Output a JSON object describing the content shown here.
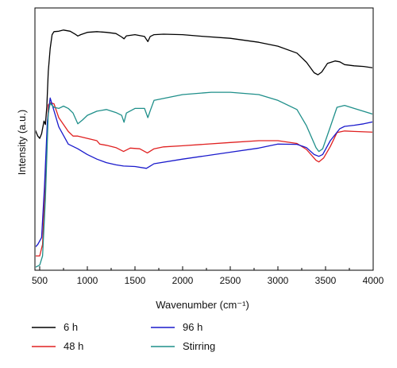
{
  "chart_data": {
    "type": "line",
    "xlabel": "Wavenumber (cm⁻¹)",
    "ylabel": "Intensity (a.u.)",
    "xlim": [
      450,
      4000
    ],
    "ylim": [
      0,
      100
    ],
    "x_ticks": [
      500,
      1000,
      1500,
      2000,
      2500,
      3000,
      3500,
      4000
    ],
    "x_tick_labels": [
      "500",
      "1000",
      "1500",
      "2000",
      "2500",
      "3000",
      "3500",
      "4000"
    ],
    "y_ticks": "none",
    "grid": false,
    "legend_position": "below",
    "series": [
      {
        "name": "6 h",
        "color": "#000000",
        "x": [
          450,
          480,
          500,
          520,
          545,
          560,
          575,
          590,
          610,
          630,
          650,
          700,
          750,
          820,
          880,
          900,
          930,
          1000,
          1100,
          1200,
          1300,
          1360,
          1385,
          1410,
          1500,
          1600,
          1635,
          1660,
          1700,
          1800,
          2000,
          2200,
          2500,
          2800,
          3000,
          3200,
          3300,
          3380,
          3420,
          3460,
          3520,
          3600,
          3650,
          3700,
          3800,
          3900,
          4000
        ],
        "y": [
          55.0,
          52.0,
          51.0,
          53.0,
          58.5,
          57.0,
          65.0,
          80.0,
          90.0,
          96.0,
          97.3,
          97.5,
          98.0,
          97.5,
          96.0,
          95.4,
          96.0,
          97.0,
          97.3,
          97.0,
          96.5,
          95.0,
          94.2,
          95.5,
          96.0,
          95.2,
          93.0,
          95.2,
          96.0,
          96.2,
          96.0,
          95.3,
          94.4,
          92.7,
          91.0,
          88.0,
          84.0,
          79.5,
          78.6,
          79.8,
          83.5,
          84.6,
          84.2,
          83.0,
          82.5,
          82.2,
          81.6
        ]
      },
      {
        "name": "48 h",
        "color": "#e02020",
        "x": [
          450,
          500,
          530,
          560,
          590,
          610,
          650,
          700,
          800,
          850,
          900,
          1000,
          1100,
          1130,
          1200,
          1300,
          1380,
          1450,
          1550,
          1630,
          1700,
          1800,
          2000,
          2500,
          2800,
          3000,
          3200,
          3300,
          3400,
          3430,
          3480,
          3550,
          3620,
          3700,
          3800,
          4000
        ],
        "y": [
          0.0,
          0.0,
          5.0,
          35.0,
          65.5,
          66.5,
          66.0,
          60.0,
          54.0,
          52.0,
          52.0,
          51.0,
          50.0,
          48.5,
          48.0,
          47.0,
          45.3,
          46.8,
          46.5,
          44.7,
          46.5,
          47.3,
          47.8,
          49.2,
          50.0,
          50.0,
          48.8,
          46.2,
          41.5,
          40.8,
          42.5,
          47.5,
          53.5,
          54.2,
          54.0,
          53.7
        ]
      },
      {
        "name": "96 h",
        "color": "#1a1acc",
        "x": [
          450,
          480,
          520,
          550,
          580,
          610,
          650,
          700,
          800,
          900,
          1000,
          1100,
          1200,
          1300,
          1380,
          1500,
          1620,
          1660,
          1700,
          2000,
          2500,
          2800,
          3000,
          3200,
          3300,
          3380,
          3430,
          3470,
          3550,
          3650,
          3700,
          3800,
          3900,
          4000
        ],
        "y": [
          3.7,
          5.0,
          8.0,
          30.0,
          58.0,
          68.5,
          63.0,
          56.0,
          48.5,
          46.5,
          44.0,
          42.0,
          40.5,
          39.5,
          39.0,
          38.8,
          38.0,
          39.0,
          40.0,
          42.0,
          45.0,
          46.8,
          48.5,
          48.4,
          47.0,
          44.0,
          43.2,
          44.0,
          50.0,
          55.2,
          56.2,
          56.7,
          57.3,
          58.2
        ]
      },
      {
        "name": "Stirring",
        "color": "#1f8f8a",
        "x": [
          450,
          500,
          530,
          560,
          590,
          610,
          650,
          700,
          750,
          800,
          850,
          900,
          950,
          1000,
          1100,
          1200,
          1300,
          1360,
          1385,
          1410,
          1500,
          1600,
          1635,
          1660,
          1700,
          2000,
          2300,
          2500,
          2800,
          3000,
          3200,
          3300,
          3400,
          3430,
          3470,
          3550,
          3620,
          3700,
          3800,
          4000
        ],
        "y": [
          -5.0,
          -4.0,
          0.0,
          25.0,
          62.0,
          66.2,
          64.5,
          64.0,
          65.0,
          64.0,
          62.0,
          57.3,
          59.0,
          61.0,
          62.8,
          63.5,
          62.2,
          61.0,
          58.0,
          62.0,
          64.0,
          64.0,
          60.0,
          63.0,
          67.5,
          70.0,
          71.0,
          71.0,
          70.0,
          67.5,
          63.5,
          56.5,
          47.0,
          45.3,
          46.5,
          56.0,
          64.5,
          65.3,
          64.0,
          61.5
        ]
      }
    ]
  }
}
